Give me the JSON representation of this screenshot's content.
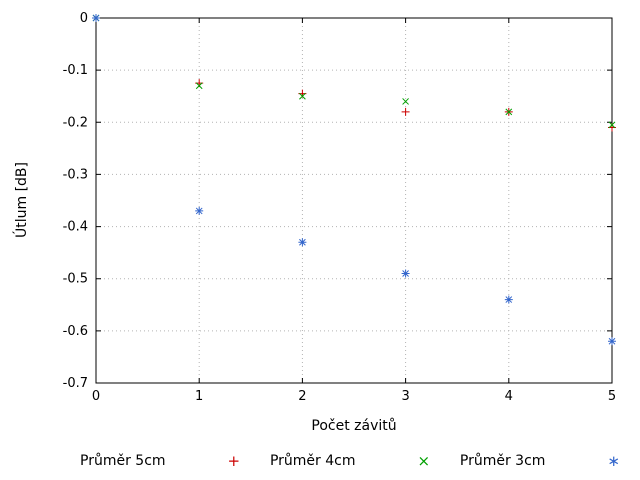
{
  "chart_data": {
    "type": "scatter",
    "title": "",
    "xlabel": "Počet závitů",
    "ylabel": "Útlum [dB]",
    "xlim": [
      0,
      5
    ],
    "ylim": [
      -0.7,
      0
    ],
    "x_ticks": [
      "0",
      "1",
      "2",
      "3",
      "4",
      "5"
    ],
    "y_ticks": [
      "0",
      "-0.1",
      "-0.2",
      "-0.3",
      "-0.4",
      "-0.5",
      "-0.6",
      "-0.7"
    ],
    "grid": true,
    "legend_position": "bottom",
    "x": [
      0,
      1,
      2,
      3,
      4,
      5
    ],
    "series": [
      {
        "name": "Průměr 5cm",
        "marker": "plus",
        "color": "#cc0000",
        "values": [
          0,
          -0.125,
          -0.145,
          -0.18,
          -0.18,
          -0.21
        ]
      },
      {
        "name": "Průměr 4cm",
        "marker": "cross",
        "color": "#00a000",
        "values": [
          0,
          -0.13,
          -0.15,
          -0.16,
          -0.18,
          -0.205
        ]
      },
      {
        "name": "Průměr 3cm",
        "marker": "asterisk",
        "color": "#3366cc",
        "values": [
          0,
          -0.37,
          -0.43,
          -0.49,
          -0.54,
          -0.62
        ]
      }
    ]
  }
}
